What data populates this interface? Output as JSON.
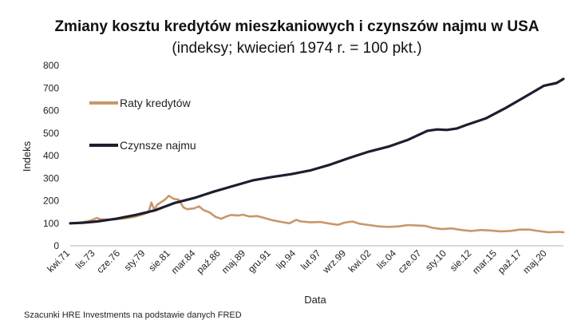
{
  "chart_data": {
    "type": "line",
    "title": "Zmiany kosztu kredytów mieszkaniowych i czynszów najmu w USA",
    "subtitle": "(indeksy; kwiecień 1974 r. = 100 pkt.)",
    "xlabel": "Data",
    "ylabel": "Indeks",
    "ylim": [
      0,
      800
    ],
    "yticks": [
      0,
      100,
      200,
      300,
      400,
      500,
      600,
      700,
      800
    ],
    "xlim": [
      1971.25,
      2022.0
    ],
    "xticks": [
      {
        "label": "kwi.71",
        "x": 1971.25
      },
      {
        "label": "lis.73",
        "x": 1973.83
      },
      {
        "label": "cze.76",
        "x": 1976.42
      },
      {
        "label": "sty.79",
        "x": 1979.0
      },
      {
        "label": "sie.81",
        "x": 1981.58
      },
      {
        "label": "mar.84",
        "x": 1984.17
      },
      {
        "label": "paź.86",
        "x": 1986.75
      },
      {
        "label": "maj.89",
        "x": 1989.33
      },
      {
        "label": "gru.91",
        "x": 1991.92
      },
      {
        "label": "lip.94",
        "x": 1994.5
      },
      {
        "label": "lut.97",
        "x": 1997.08
      },
      {
        "label": "wrz.99",
        "x": 1999.67
      },
      {
        "label": "kwi.02",
        "x": 2002.25
      },
      {
        "label": "lis.04",
        "x": 2004.83
      },
      {
        "label": "cze.07",
        "x": 2007.42
      },
      {
        "label": "sty.10",
        "x": 2010.0
      },
      {
        "label": "sie.12",
        "x": 2012.58
      },
      {
        "label": "mar.15",
        "x": 2015.17
      },
      {
        "label": "paź.17",
        "x": 2017.75
      },
      {
        "label": "maj.20",
        "x": 2020.33
      }
    ],
    "legend_position": "top-left",
    "series": [
      {
        "name": "Raty kredytów",
        "color": "#c8976a",
        "points": [
          [
            1971.25,
            100
          ],
          [
            1972.0,
            102
          ],
          [
            1973.0,
            108
          ],
          [
            1973.5,
            114
          ],
          [
            1974.0,
            124
          ],
          [
            1974.3,
            118
          ],
          [
            1975.0,
            116
          ],
          [
            1976.0,
            118
          ],
          [
            1977.0,
            122
          ],
          [
            1978.0,
            130
          ],
          [
            1978.8,
            140
          ],
          [
            1979.3,
            148
          ],
          [
            1979.6,
            192
          ],
          [
            1979.9,
            160
          ],
          [
            1980.2,
            182
          ],
          [
            1980.6,
            194
          ],
          [
            1981.0,
            205
          ],
          [
            1981.4,
            222
          ],
          [
            1981.9,
            208
          ],
          [
            1982.4,
            205
          ],
          [
            1982.9,
            170
          ],
          [
            1983.3,
            162
          ],
          [
            1984.0,
            166
          ],
          [
            1984.5,
            175
          ],
          [
            1985.0,
            158
          ],
          [
            1985.6,
            148
          ],
          [
            1986.2,
            128
          ],
          [
            1986.8,
            120
          ],
          [
            1987.3,
            130
          ],
          [
            1987.8,
            137
          ],
          [
            1988.5,
            134
          ],
          [
            1989.0,
            138
          ],
          [
            1989.7,
            130
          ],
          [
            1990.5,
            132
          ],
          [
            1991.2,
            124
          ],
          [
            1992.0,
            114
          ],
          [
            1993.0,
            106
          ],
          [
            1993.8,
            100
          ],
          [
            1994.5,
            115
          ],
          [
            1995.0,
            108
          ],
          [
            1996.0,
            104
          ],
          [
            1997.0,
            106
          ],
          [
            1998.0,
            98
          ],
          [
            1998.8,
            93
          ],
          [
            1999.5,
            103
          ],
          [
            2000.3,
            108
          ],
          [
            2001.0,
            98
          ],
          [
            2002.0,
            92
          ],
          [
            2003.0,
            86
          ],
          [
            2004.0,
            84
          ],
          [
            2005.0,
            86
          ],
          [
            2006.0,
            92
          ],
          [
            2007.0,
            90
          ],
          [
            2007.8,
            88
          ],
          [
            2008.5,
            80
          ],
          [
            2009.5,
            74
          ],
          [
            2010.5,
            77
          ],
          [
            2011.5,
            70
          ],
          [
            2012.5,
            66
          ],
          [
            2013.5,
            70
          ],
          [
            2014.5,
            68
          ],
          [
            2015.5,
            64
          ],
          [
            2016.5,
            66
          ],
          [
            2017.5,
            72
          ],
          [
            2018.5,
            72
          ],
          [
            2019.5,
            65
          ],
          [
            2020.5,
            60
          ],
          [
            2021.5,
            62
          ],
          [
            2022.0,
            60
          ]
        ]
      },
      {
        "name": "Czynsze najmu",
        "color": "#1d1e2e",
        "points": [
          [
            1971.25,
            100
          ],
          [
            1972.5,
            102
          ],
          [
            1974.0,
            108
          ],
          [
            1976.0,
            120
          ],
          [
            1978.0,
            137
          ],
          [
            1980.0,
            158
          ],
          [
            1982.0,
            190
          ],
          [
            1984.0,
            212
          ],
          [
            1986.0,
            240
          ],
          [
            1988.0,
            265
          ],
          [
            1990.0,
            290
          ],
          [
            1992.0,
            305
          ],
          [
            1994.0,
            318
          ],
          [
            1996.0,
            335
          ],
          [
            1998.0,
            360
          ],
          [
            2000.0,
            390
          ],
          [
            2002.0,
            418
          ],
          [
            2004.0,
            440
          ],
          [
            2006.0,
            470
          ],
          [
            2008.0,
            510
          ],
          [
            2009.0,
            516
          ],
          [
            2010.0,
            514
          ],
          [
            2011.0,
            520
          ],
          [
            2012.0,
            536
          ],
          [
            2014.0,
            565
          ],
          [
            2016.0,
            610
          ],
          [
            2018.0,
            660
          ],
          [
            2020.0,
            710
          ],
          [
            2021.3,
            722
          ],
          [
            2022.0,
            740
          ]
        ]
      }
    ]
  },
  "source_note": "Szacunki HRE Investments na podstawie danych FRED"
}
